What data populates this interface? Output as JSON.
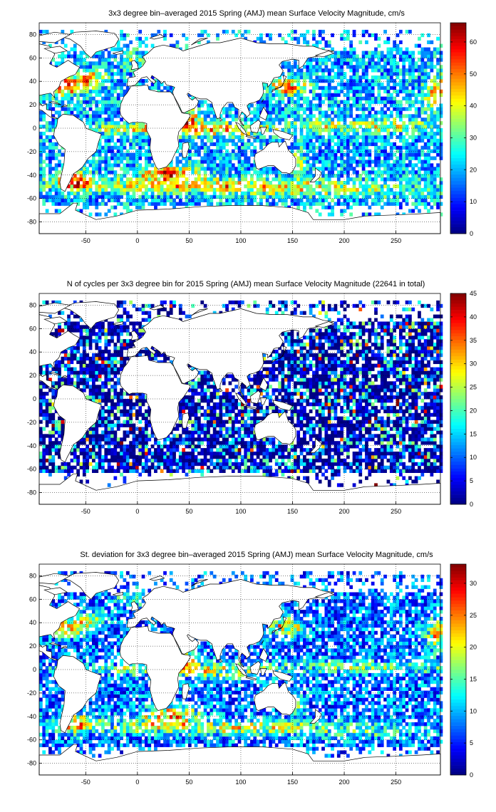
{
  "chart_data": [
    {
      "type": "heatmap",
      "title": "3x3 degree bin–averaged 2015 Spring (AMJ) mean Surface Velocity Magnitude, cm/s",
      "xlabel": "",
      "ylabel": "",
      "xlim": [
        -95,
        293
      ],
      "ylim": [
        -90,
        90
      ],
      "xticks": [
        -50,
        0,
        50,
        100,
        150,
        200,
        250
      ],
      "yticks": [
        -80,
        -60,
        -40,
        -20,
        0,
        20,
        40,
        60,
        80
      ],
      "grid": true,
      "bin_size_deg": 3,
      "colorbar": {
        "min": 0,
        "max": 66,
        "ticks": [
          0,
          10,
          20,
          30,
          40,
          50,
          60
        ],
        "colormap": "jet"
      }
    },
    {
      "type": "heatmap",
      "title": "N of cycles per 3x3 degree bin for 2015 Spring (AMJ) mean Surface Velocity Magnitude (22641 in total)",
      "xlabel": "",
      "ylabel": "",
      "xlim": [
        -95,
        293
      ],
      "ylim": [
        -90,
        90
      ],
      "xticks": [
        -50,
        0,
        50,
        100,
        150,
        200,
        250
      ],
      "yticks": [
        -80,
        -60,
        -40,
        -20,
        0,
        20,
        40,
        60,
        80
      ],
      "grid": true,
      "bin_size_deg": 3,
      "total_cycles": 22641,
      "colorbar": {
        "min": 0,
        "max": 45,
        "ticks": [
          0,
          5,
          10,
          15,
          20,
          25,
          30,
          35,
          40,
          45
        ],
        "colormap": "jet"
      }
    },
    {
      "type": "heatmap",
      "title": "St. deviation for 3x3 degree bin–averaged 2015 Spring (AMJ) mean Surface Velocity Magnitude, cm/s",
      "xlabel": "",
      "ylabel": "",
      "xlim": [
        -95,
        293
      ],
      "ylim": [
        -90,
        90
      ],
      "xticks": [
        -50,
        0,
        50,
        100,
        150,
        200,
        250
      ],
      "yticks": [
        -80,
        -60,
        -40,
        -20,
        0,
        20,
        40,
        60,
        80
      ],
      "grid": true,
      "bin_size_deg": 3,
      "colorbar": {
        "min": 0,
        "max": 33,
        "ticks": [
          0,
          5,
          10,
          15,
          20,
          25,
          30
        ],
        "colormap": "jet"
      }
    }
  ]
}
